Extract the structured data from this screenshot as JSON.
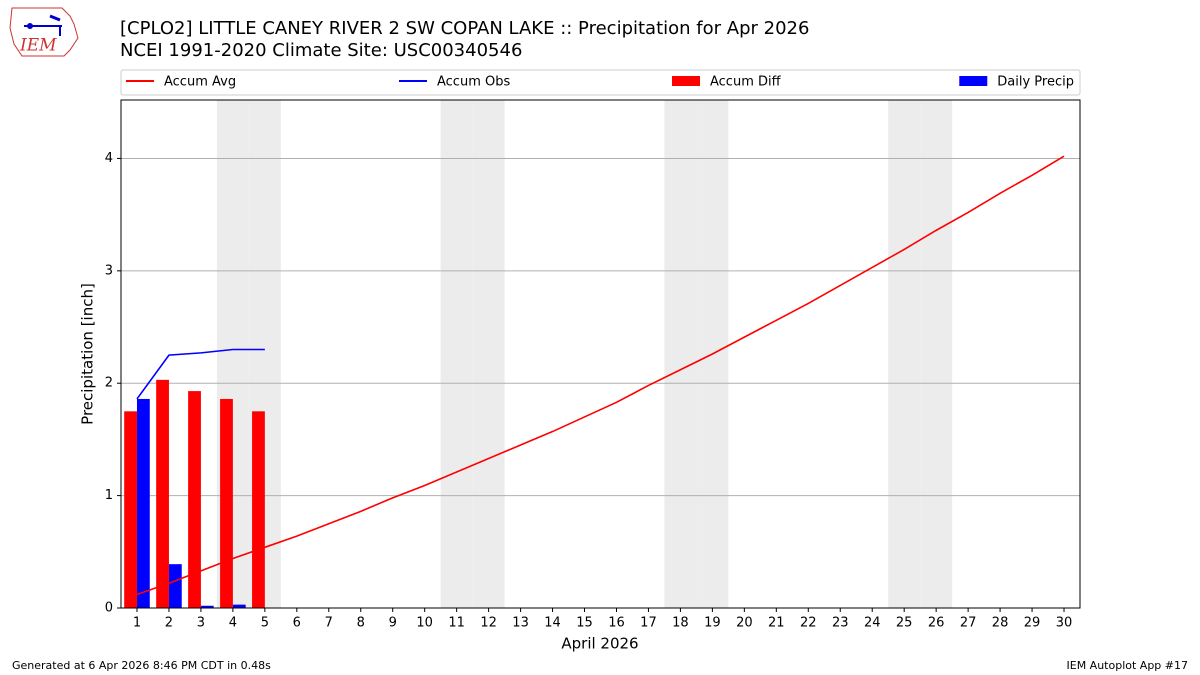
{
  "logo_text": "IEM",
  "chart_data": {
    "type": "combo",
    "title": "[CPLO2] LITTLE CANEY RIVER 2 SW COPAN LAKE :: Precipitation for Apr 2026",
    "subtitle": "NCEI 1991-2020 Climate Site: USC00340546",
    "xlabel": "April 2026",
    "ylabel": "Precipitation [inch]",
    "footer_left": "Generated at 6 Apr 2026 8:46 PM CDT in 0.48s",
    "footer_right": "IEM Autoplot App #17",
    "x": [
      1,
      2,
      3,
      4,
      5,
      6,
      7,
      8,
      9,
      10,
      11,
      12,
      13,
      14,
      15,
      16,
      17,
      18,
      19,
      20,
      21,
      22,
      23,
      24,
      25,
      26,
      27,
      28,
      29,
      30
    ],
    "xlim": [
      0.5,
      30.5
    ],
    "xticks": [
      1,
      2,
      3,
      4,
      5,
      6,
      7,
      8,
      9,
      10,
      11,
      12,
      13,
      14,
      15,
      16,
      17,
      18,
      19,
      20,
      21,
      22,
      23,
      24,
      25,
      26,
      27,
      28,
      29,
      30
    ],
    "ylim": [
      0,
      4.52
    ],
    "yticks": [
      0,
      1,
      2,
      3,
      4
    ],
    "grid": "y",
    "weekend_days": [
      4,
      5,
      11,
      12,
      18,
      19,
      25,
      26
    ],
    "weekend_color": "#ececec",
    "legend": "top-outside",
    "series": [
      {
        "name": "Accum Avg",
        "type": "line",
        "color": "#ff0000",
        "values": [
          0.12,
          0.22,
          0.33,
          0.44,
          0.54,
          0.64,
          0.75,
          0.86,
          0.98,
          1.09,
          1.21,
          1.33,
          1.45,
          1.57,
          1.7,
          1.83,
          1.98,
          2.12,
          2.26,
          2.41,
          2.56,
          2.71,
          2.87,
          3.03,
          3.19,
          3.36,
          3.52,
          3.69,
          3.85,
          4.02
        ]
      },
      {
        "name": "Accum Obs",
        "type": "line",
        "color": "#0000ff",
        "values": [
          1.86,
          2.25,
          2.27,
          2.3,
          2.3,
          null,
          null,
          null,
          null,
          null,
          null,
          null,
          null,
          null,
          null,
          null,
          null,
          null,
          null,
          null,
          null,
          null,
          null,
          null,
          null,
          null,
          null,
          null,
          null,
          null
        ]
      },
      {
        "name": "Accum Diff",
        "type": "bar",
        "color": "#ff0000",
        "values": [
          1.75,
          2.03,
          1.93,
          1.86,
          1.75,
          null,
          null,
          null,
          null,
          null,
          null,
          null,
          null,
          null,
          null,
          null,
          null,
          null,
          null,
          null,
          null,
          null,
          null,
          null,
          null,
          null,
          null,
          null,
          null,
          null
        ]
      },
      {
        "name": "Daily Precip",
        "type": "bar",
        "color": "#0000ff",
        "values": [
          1.86,
          0.39,
          0.02,
          0.03,
          0,
          null,
          null,
          null,
          null,
          null,
          null,
          null,
          null,
          null,
          null,
          null,
          null,
          null,
          null,
          null,
          null,
          null,
          null,
          null,
          null,
          null,
          null,
          null,
          null,
          null
        ]
      }
    ]
  }
}
